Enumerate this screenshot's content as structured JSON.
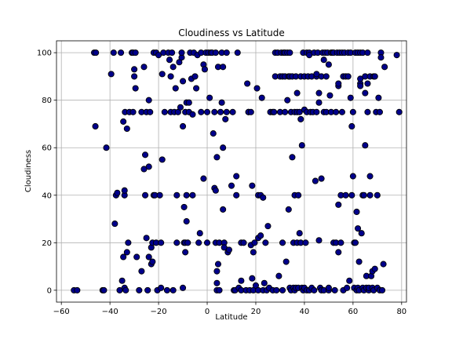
{
  "chart_data": {
    "type": "scatter",
    "title": "Cloudiness vs Latitude",
    "xlabel": "Latitude",
    "ylabel": "Cloudiness",
    "xlim": [
      -62,
      82
    ],
    "ylim": [
      -5,
      105
    ],
    "xticks": [
      "−60",
      "−40",
      "−20",
      "0",
      "20",
      "40",
      "60",
      "80"
    ],
    "xtick_values": [
      -60,
      -40,
      -20,
      0,
      20,
      40,
      60,
      80
    ],
    "yticks": [
      "0",
      "20",
      "40",
      "60",
      "80",
      "100"
    ],
    "ytick_values": [
      0,
      20,
      40,
      60,
      80,
      100
    ],
    "grid": true,
    "marker_fill": "#00008b",
    "marker_edge": "#000000",
    "points": [
      [
        -54.8,
        0
      ],
      [
        -53.5,
        0
      ],
      [
        -46.5,
        100
      ],
      [
        -45.8,
        100
      ],
      [
        -46,
        69
      ],
      [
        -43,
        0
      ],
      [
        -42.5,
        0
      ],
      [
        -41.5,
        60
      ],
      [
        -39.5,
        91
      ],
      [
        -38.5,
        100
      ],
      [
        -38,
        28
      ],
      [
        -37.5,
        40
      ],
      [
        -37,
        41
      ],
      [
        -36,
        0
      ],
      [
        -35.5,
        100
      ],
      [
        -35,
        4
      ],
      [
        -34.5,
        14
      ],
      [
        -34.5,
        71
      ],
      [
        -34,
        40
      ],
      [
        -34,
        42
      ],
      [
        -34,
        1
      ],
      [
        -33.8,
        75
      ],
      [
        -33.5,
        0
      ],
      [
        -33,
        68
      ],
      [
        -33,
        16
      ],
      [
        -32.5,
        20
      ],
      [
        -32,
        75
      ],
      [
        -31,
        100
      ],
      [
        -30.5,
        100
      ],
      [
        -30.5,
        75
      ],
      [
        -30,
        93
      ],
      [
        -30,
        90
      ],
      [
        -29.5,
        85
      ],
      [
        -29.5,
        100
      ],
      [
        -29,
        14
      ],
      [
        -28,
        0
      ],
      [
        -27,
        75
      ],
      [
        -27,
        8
      ],
      [
        -26,
        94
      ],
      [
        -26,
        51
      ],
      [
        -25.5,
        40
      ],
      [
        -25.5,
        57
      ],
      [
        -25,
        22
      ],
      [
        -25,
        75
      ],
      [
        -24.5,
        0
      ],
      [
        -24,
        52
      ],
      [
        -24,
        80
      ],
      [
        -24,
        14
      ],
      [
        -23.5,
        75
      ],
      [
        -23,
        11
      ],
      [
        -23,
        18
      ],
      [
        -22.5,
        12
      ],
      [
        -22.5,
        20
      ],
      [
        -22,
        40
      ],
      [
        -22,
        100
      ],
      [
        -21.5,
        40
      ],
      [
        -21,
        20
      ],
      [
        -21,
        100
      ],
      [
        -20.5,
        0
      ],
      [
        -20,
        99
      ],
      [
        -19.5,
        40
      ],
      [
        -19,
        20
      ],
      [
        -19,
        1
      ],
      [
        -18.5,
        55
      ],
      [
        -18.5,
        91
      ],
      [
        -18,
        100
      ],
      [
        -17.5,
        75
      ],
      [
        -16.5,
        0
      ],
      [
        -16,
        100
      ],
      [
        -15.5,
        97
      ],
      [
        -15,
        90
      ],
      [
        -15,
        75
      ],
      [
        -14.5,
        100
      ],
      [
        -14,
        94
      ],
      [
        -14,
        0
      ],
      [
        -13.5,
        75
      ],
      [
        -13,
        85
      ],
      [
        -12.5,
        40
      ],
      [
        -12.5,
        20
      ],
      [
        -12,
        75
      ],
      [
        -11.5,
        96
      ],
      [
        -11,
        77
      ],
      [
        -10.5,
        98
      ],
      [
        -10.5,
        100
      ],
      [
        -10,
        69
      ],
      [
        -10,
        88
      ],
      [
        -10,
        1
      ],
      [
        -9.5,
        35
      ],
      [
        -9.5,
        20
      ],
      [
        -9,
        20
      ],
      [
        -9,
        16
      ],
      [
        -9,
        75
      ],
      [
        -8.5,
        29
      ],
      [
        -8.5,
        40
      ],
      [
        -8.5,
        79
      ],
      [
        -8,
        20
      ],
      [
        -7.5,
        75
      ],
      [
        -7.5,
        79
      ],
      [
        -7,
        100
      ],
      [
        -6.5,
        89
      ],
      [
        -6,
        74
      ],
      [
        -6,
        40
      ],
      [
        -5.5,
        100
      ],
      [
        -5,
        90
      ],
      [
        -4.5,
        85
      ],
      [
        -4,
        99
      ],
      [
        -3.5,
        20
      ],
      [
        -3,
        24
      ],
      [
        -2.5,
        100
      ],
      [
        -2.5,
        75
      ],
      [
        -1.5,
        47
      ],
      [
        -1.5,
        95
      ],
      [
        -1,
        93
      ],
      [
        -0.5,
        100
      ],
      [
        0,
        75
      ],
      [
        0,
        20
      ],
      [
        0.5,
        100
      ],
      [
        1,
        81
      ],
      [
        1.5,
        100
      ],
      [
        2,
        100
      ],
      [
        2.5,
        66
      ],
      [
        3,
        75
      ],
      [
        3,
        43
      ],
      [
        3.5,
        42
      ],
      [
        3.5,
        100
      ],
      [
        3.5,
        20
      ],
      [
        4,
        56
      ],
      [
        4,
        0
      ],
      [
        4,
        3
      ],
      [
        4,
        8
      ],
      [
        4.5,
        11
      ],
      [
        4.5,
        94
      ],
      [
        5,
        0
      ],
      [
        5,
        20
      ],
      [
        5.5,
        75
      ],
      [
        6,
        79
      ],
      [
        6,
        100
      ],
      [
        6.5,
        60
      ],
      [
        6.5,
        34
      ],
      [
        6.5,
        94
      ],
      [
        7,
        20
      ],
      [
        7,
        18
      ],
      [
        7.5,
        72
      ],
      [
        8,
        75
      ],
      [
        8,
        100
      ],
      [
        8.5,
        16
      ],
      [
        9,
        17
      ],
      [
        10,
        44
      ],
      [
        10.5,
        75
      ],
      [
        11,
        0
      ],
      [
        11.5,
        0
      ],
      [
        12,
        40
      ],
      [
        12,
        48
      ],
      [
        12.5,
        100
      ],
      [
        13,
        1
      ],
      [
        14,
        20
      ],
      [
        14,
        0
      ],
      [
        14,
        4
      ],
      [
        15,
        20
      ],
      [
        16,
        0
      ],
      [
        16.5,
        87
      ],
      [
        17,
        75
      ],
      [
        17,
        75
      ],
      [
        17.5,
        0
      ],
      [
        18,
        75
      ],
      [
        18,
        19
      ],
      [
        18.5,
        5
      ],
      [
        18.5,
        44
      ],
      [
        19,
        0
      ],
      [
        19,
        16
      ],
      [
        19.5,
        20
      ],
      [
        20,
        2
      ],
      [
        20.5,
        85
      ],
      [
        21,
        22
      ],
      [
        21,
        40
      ],
      [
        21,
        0
      ],
      [
        22,
        40
      ],
      [
        22,
        23
      ],
      [
        22.5,
        81
      ],
      [
        23,
        0
      ],
      [
        23,
        39
      ],
      [
        23.5,
        3
      ],
      [
        24,
        20
      ],
      [
        24.5,
        0
      ],
      [
        25,
        27
      ],
      [
        25.5,
        1
      ],
      [
        26,
        75
      ],
      [
        27,
        0
      ],
      [
        27,
        75
      ],
      [
        27.5,
        75
      ],
      [
        28,
        100
      ],
      [
        28,
        90
      ],
      [
        28.5,
        0
      ],
      [
        29,
        100
      ],
      [
        29.5,
        6
      ],
      [
        30,
        75
      ],
      [
        30,
        90
      ],
      [
        30.5,
        100
      ],
      [
        31,
        90
      ],
      [
        31,
        20
      ],
      [
        31,
        0
      ],
      [
        31.5,
        100
      ],
      [
        32,
        75
      ],
      [
        32,
        90
      ],
      [
        32,
        100
      ],
      [
        32.5,
        12
      ],
      [
        33,
        100
      ],
      [
        33,
        80
      ],
      [
        33.5,
        90
      ],
      [
        33.5,
        34
      ],
      [
        34,
        100
      ],
      [
        34,
        90
      ],
      [
        34,
        1
      ],
      [
        34.5,
        75
      ],
      [
        34.5,
        0
      ],
      [
        35,
        90
      ],
      [
        35,
        56
      ],
      [
        35.5,
        1
      ],
      [
        35.5,
        20
      ],
      [
        36,
        75
      ],
      [
        36,
        40
      ],
      [
        36,
        0
      ],
      [
        36.5,
        90
      ],
      [
        36.5,
        1
      ],
      [
        37,
        83
      ],
      [
        37,
        20
      ],
      [
        37,
        75
      ],
      [
        37.5,
        40
      ],
      [
        37.5,
        1
      ],
      [
        38,
        24
      ],
      [
        38,
        75
      ],
      [
        38.5,
        90
      ],
      [
        38.5,
        72
      ],
      [
        38.5,
        20
      ],
      [
        39,
        61
      ],
      [
        39,
        1
      ],
      [
        39.5,
        100
      ],
      [
        39.5,
        0
      ],
      [
        40,
        76
      ],
      [
        40,
        90
      ],
      [
        40,
        1
      ],
      [
        40.5,
        20
      ],
      [
        41,
        100
      ],
      [
        41,
        75
      ],
      [
        41,
        0
      ],
      [
        41.5,
        90
      ],
      [
        42,
        100
      ],
      [
        42,
        99
      ],
      [
        42,
        0
      ],
      [
        42.5,
        75
      ],
      [
        43,
        90
      ],
      [
        43,
        1
      ],
      [
        43.5,
        75
      ],
      [
        44,
        100
      ],
      [
        44,
        0
      ],
      [
        44.5,
        46
      ],
      [
        45,
        90
      ],
      [
        45,
        91
      ],
      [
        45,
        75
      ],
      [
        45.5,
        100
      ],
      [
        46,
        79
      ],
      [
        46,
        83
      ],
      [
        46,
        21
      ],
      [
        46.5,
        1
      ],
      [
        47,
        90
      ],
      [
        47,
        0
      ],
      [
        47,
        47
      ],
      [
        47.5,
        100
      ],
      [
        48,
        75
      ],
      [
        48,
        0
      ],
      [
        48,
        97
      ],
      [
        48.5,
        100
      ],
      [
        49,
        90
      ],
      [
        49,
        75
      ],
      [
        49.5,
        100
      ],
      [
        50,
        95
      ],
      [
        50,
        0
      ],
      [
        50,
        1
      ],
      [
        50.5,
        82
      ],
      [
        51,
        75
      ],
      [
        51,
        100
      ],
      [
        51.5,
        100
      ],
      [
        52,
        20
      ],
      [
        52,
        100
      ],
      [
        52.5,
        0
      ],
      [
        53,
        75
      ],
      [
        53,
        20
      ],
      [
        53.5,
        100
      ],
      [
        54,
        86
      ],
      [
        54,
        87
      ],
      [
        54,
        36
      ],
      [
        54,
        16
      ],
      [
        54.5,
        100
      ],
      [
        55,
        20
      ],
      [
        55,
        40
      ],
      [
        55.5,
        100
      ],
      [
        55.5,
        75
      ],
      [
        56,
        90
      ],
      [
        56,
        0
      ],
      [
        56.5,
        100
      ],
      [
        57,
        90
      ],
      [
        57,
        40
      ],
      [
        57.5,
        1
      ],
      [
        58,
        100
      ],
      [
        58,
        90
      ],
      [
        58.5,
        4
      ],
      [
        59,
        100
      ],
      [
        59,
        81
      ],
      [
        59.5,
        69
      ],
      [
        59.5,
        40
      ],
      [
        60,
        48
      ],
      [
        60,
        75
      ],
      [
        60.5,
        1
      ],
      [
        60.5,
        20
      ],
      [
        61,
        20
      ],
      [
        61,
        100
      ],
      [
        61.5,
        0
      ],
      [
        61.5,
        33
      ],
      [
        62,
        100
      ],
      [
        62,
        1
      ],
      [
        62,
        26
      ],
      [
        62.5,
        0
      ],
      [
        62.5,
        12
      ],
      [
        63,
        87
      ],
      [
        63,
        89
      ],
      [
        63,
        86
      ],
      [
        63,
        100
      ],
      [
        63.5,
        24
      ],
      [
        64,
        1
      ],
      [
        64,
        40
      ],
      [
        64,
        100
      ],
      [
        64.5,
        0
      ],
      [
        64.5,
        40
      ],
      [
        65,
        61
      ],
      [
        65,
        83
      ],
      [
        65,
        90
      ],
      [
        65.5,
        6
      ],
      [
        65.5,
        1
      ],
      [
        66,
        87
      ],
      [
        66,
        100
      ],
      [
        66,
        75
      ],
      [
        66.5,
        0
      ],
      [
        66.5,
        1
      ],
      [
        67,
        90
      ],
      [
        67,
        48
      ],
      [
        67,
        40
      ],
      [
        67.5,
        6
      ],
      [
        68,
        8
      ],
      [
        68,
        1
      ],
      [
        68.5,
        90
      ],
      [
        68.5,
        0
      ],
      [
        69,
        90
      ],
      [
        69,
        9
      ],
      [
        69.5,
        75
      ],
      [
        70,
        1
      ],
      [
        70,
        40
      ],
      [
        70.5,
        81
      ],
      [
        71,
        75
      ],
      [
        71,
        0
      ],
      [
        71.5,
        100
      ],
      [
        71.5,
        98
      ],
      [
        72,
        0
      ],
      [
        72.5,
        11
      ],
      [
        73,
        94
      ],
      [
        78,
        99
      ],
      [
        79,
        75
      ]
    ]
  }
}
